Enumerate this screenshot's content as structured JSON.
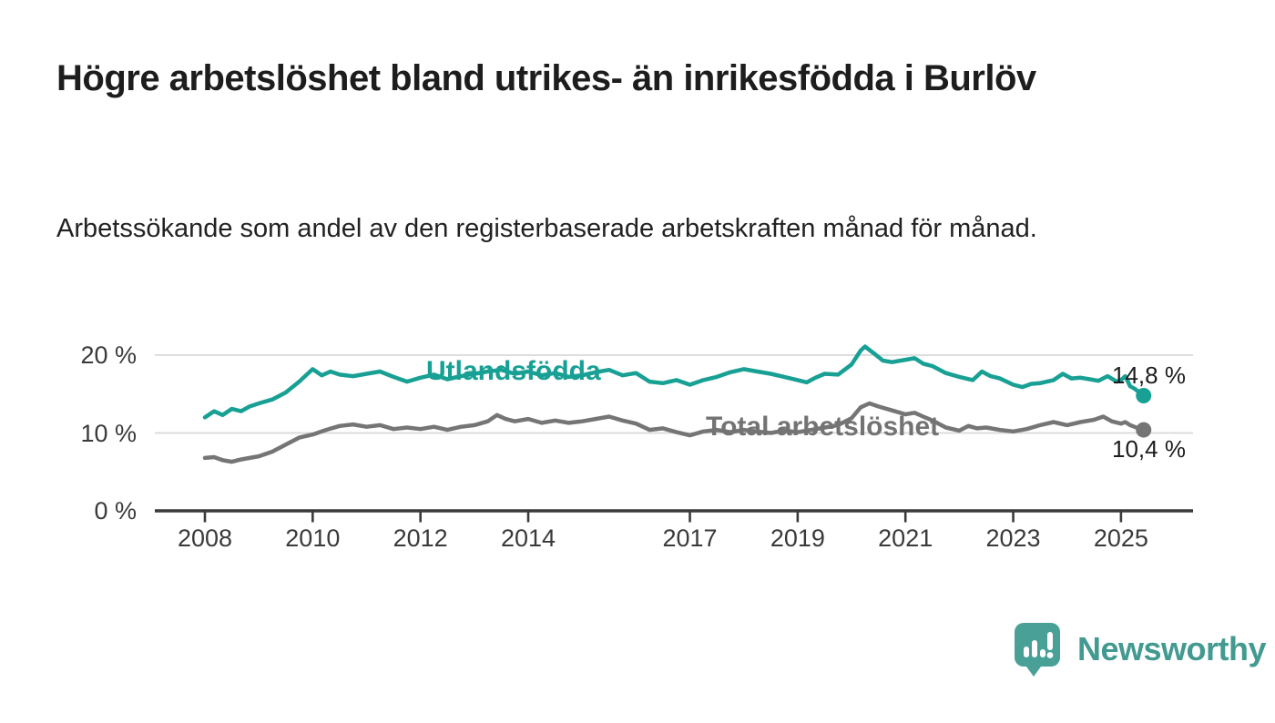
{
  "header": {
    "title": "Högre arbetslöshet bland utrikes- än inrikesfödda i Burlöv",
    "subtitle": "Arbetssökande som andel av den registerbaserade arbetskraften månad för månad."
  },
  "branding": {
    "name": "Newsworthy",
    "logo_color": "#48a096"
  },
  "colors": {
    "foreign_born_line": "#18a094",
    "total_line": "#757575",
    "total_label": "#737373",
    "grid": "#d9d9d9",
    "axis": "#3a3a3a",
    "value_label_text": "#1d1d1d"
  },
  "chart_data": {
    "type": "line",
    "title": "Högre arbetslöshet bland utrikes- än inrikesfödda i Burlöv",
    "subtitle": "Arbetssökande som andel av den registerbaserade arbetskraften månad för månad.",
    "x_unit": "år (månadsdata)",
    "y_unit": "procent av registerbaserad arbetskraft",
    "x_axis": {
      "range": [
        2007.1,
        2026.3
      ],
      "ticks": [
        2008,
        2010,
        2012,
        2014,
        2017,
        2019,
        2021,
        2023,
        2025
      ],
      "tick_labels": [
        "2008",
        "2010",
        "2012",
        "2014",
        "2017",
        "2019",
        "2021",
        "2023",
        "2025"
      ]
    },
    "y_axis": {
      "range": [
        0,
        22.5
      ],
      "ticks": [
        0,
        10,
        20
      ],
      "tick_labels": [
        "0 %",
        "10 %",
        "20 %"
      ],
      "grid": true
    },
    "legend_position": "inline-labels-on-lines",
    "series": [
      {
        "name": "Utlandsfödda",
        "color": "#18a094",
        "end_label": "14,8 %",
        "last_value": 14.8,
        "points": [
          [
            2008.0,
            12.0
          ],
          [
            2008.17,
            12.8
          ],
          [
            2008.33,
            12.3
          ],
          [
            2008.5,
            13.1
          ],
          [
            2008.67,
            12.8
          ],
          [
            2008.83,
            13.4
          ],
          [
            2009.0,
            13.8
          ],
          [
            2009.25,
            14.3
          ],
          [
            2009.5,
            15.2
          ],
          [
            2009.75,
            16.6
          ],
          [
            2010.0,
            18.2
          ],
          [
            2010.17,
            17.4
          ],
          [
            2010.33,
            17.9
          ],
          [
            2010.5,
            17.5
          ],
          [
            2010.75,
            17.3
          ],
          [
            2011.0,
            17.6
          ],
          [
            2011.25,
            17.9
          ],
          [
            2011.5,
            17.2
          ],
          [
            2011.75,
            16.6
          ],
          [
            2012.0,
            17.1
          ],
          [
            2012.25,
            17.5
          ],
          [
            2012.5,
            16.9
          ],
          [
            2012.75,
            17.3
          ],
          [
            2013.0,
            17.6
          ],
          [
            2013.25,
            17.9
          ],
          [
            2013.5,
            18.1
          ],
          [
            2013.75,
            17.6
          ],
          [
            2014.0,
            17.9
          ],
          [
            2014.25,
            17.4
          ],
          [
            2014.5,
            17.7
          ],
          [
            2014.75,
            17.2
          ],
          [
            2015.0,
            17.4
          ],
          [
            2015.25,
            17.8
          ],
          [
            2015.5,
            18.1
          ],
          [
            2015.75,
            17.4
          ],
          [
            2016.0,
            17.7
          ],
          [
            2016.25,
            16.6
          ],
          [
            2016.5,
            16.4
          ],
          [
            2016.75,
            16.8
          ],
          [
            2017.0,
            16.2
          ],
          [
            2017.25,
            16.8
          ],
          [
            2017.5,
            17.2
          ],
          [
            2017.75,
            17.8
          ],
          [
            2018.0,
            18.2
          ],
          [
            2018.25,
            17.9
          ],
          [
            2018.5,
            17.6
          ],
          [
            2018.75,
            17.2
          ],
          [
            2019.0,
            16.8
          ],
          [
            2019.17,
            16.5
          ],
          [
            2019.33,
            17.1
          ],
          [
            2019.5,
            17.6
          ],
          [
            2019.75,
            17.5
          ],
          [
            2020.0,
            18.8
          ],
          [
            2020.17,
            20.6
          ],
          [
            2020.25,
            21.1
          ],
          [
            2020.42,
            20.2
          ],
          [
            2020.58,
            19.3
          ],
          [
            2020.75,
            19.1
          ],
          [
            2021.0,
            19.4
          ],
          [
            2021.17,
            19.6
          ],
          [
            2021.33,
            18.9
          ],
          [
            2021.5,
            18.6
          ],
          [
            2021.75,
            17.7
          ],
          [
            2022.0,
            17.2
          ],
          [
            2022.25,
            16.8
          ],
          [
            2022.42,
            17.9
          ],
          [
            2022.58,
            17.3
          ],
          [
            2022.75,
            17.0
          ],
          [
            2023.0,
            16.2
          ],
          [
            2023.17,
            15.9
          ],
          [
            2023.33,
            16.3
          ],
          [
            2023.5,
            16.4
          ],
          [
            2023.75,
            16.8
          ],
          [
            2023.92,
            17.6
          ],
          [
            2024.08,
            17.0
          ],
          [
            2024.25,
            17.1
          ],
          [
            2024.42,
            16.9
          ],
          [
            2024.58,
            16.7
          ],
          [
            2024.75,
            17.3
          ],
          [
            2024.92,
            16.6
          ],
          [
            2025.0,
            16.8
          ],
          [
            2025.08,
            17.3
          ],
          [
            2025.17,
            16.0
          ],
          [
            2025.25,
            15.7
          ],
          [
            2025.42,
            14.8
          ]
        ]
      },
      {
        "name": "Total arbetslöshet",
        "color": "#757575",
        "end_label": "10,4 %",
        "last_value": 10.4,
        "points": [
          [
            2008.0,
            6.8
          ],
          [
            2008.17,
            6.9
          ],
          [
            2008.33,
            6.5
          ],
          [
            2008.5,
            6.3
          ],
          [
            2008.67,
            6.6
          ],
          [
            2008.83,
            6.8
          ],
          [
            2009.0,
            7.0
          ],
          [
            2009.25,
            7.6
          ],
          [
            2009.5,
            8.5
          ],
          [
            2009.75,
            9.4
          ],
          [
            2010.0,
            9.8
          ],
          [
            2010.25,
            10.4
          ],
          [
            2010.5,
            10.9
          ],
          [
            2010.75,
            11.1
          ],
          [
            2011.0,
            10.8
          ],
          [
            2011.25,
            11.0
          ],
          [
            2011.5,
            10.5
          ],
          [
            2011.75,
            10.7
          ],
          [
            2012.0,
            10.5
          ],
          [
            2012.25,
            10.8
          ],
          [
            2012.5,
            10.4
          ],
          [
            2012.75,
            10.8
          ],
          [
            2013.0,
            11.0
          ],
          [
            2013.25,
            11.5
          ],
          [
            2013.42,
            12.3
          ],
          [
            2013.58,
            11.8
          ],
          [
            2013.75,
            11.5
          ],
          [
            2014.0,
            11.8
          ],
          [
            2014.25,
            11.3
          ],
          [
            2014.5,
            11.6
          ],
          [
            2014.75,
            11.3
          ],
          [
            2015.0,
            11.5
          ],
          [
            2015.25,
            11.8
          ],
          [
            2015.5,
            12.1
          ],
          [
            2015.75,
            11.6
          ],
          [
            2016.0,
            11.2
          ],
          [
            2016.25,
            10.4
          ],
          [
            2016.5,
            10.6
          ],
          [
            2016.75,
            10.1
          ],
          [
            2017.0,
            9.7
          ],
          [
            2017.25,
            10.2
          ],
          [
            2017.5,
            10.4
          ],
          [
            2017.75,
            10.1
          ],
          [
            2018.0,
            10.4
          ],
          [
            2018.25,
            10.2
          ],
          [
            2018.5,
            10.0
          ],
          [
            2018.75,
            10.3
          ],
          [
            2019.0,
            10.1
          ],
          [
            2019.25,
            10.4
          ],
          [
            2019.5,
            10.7
          ],
          [
            2019.75,
            11.0
          ],
          [
            2020.0,
            11.9
          ],
          [
            2020.17,
            13.3
          ],
          [
            2020.33,
            13.8
          ],
          [
            2020.5,
            13.4
          ],
          [
            2020.75,
            12.9
          ],
          [
            2021.0,
            12.4
          ],
          [
            2021.17,
            12.6
          ],
          [
            2021.33,
            12.1
          ],
          [
            2021.5,
            11.6
          ],
          [
            2021.75,
            10.7
          ],
          [
            2022.0,
            10.3
          ],
          [
            2022.17,
            10.9
          ],
          [
            2022.33,
            10.6
          ],
          [
            2022.5,
            10.7
          ],
          [
            2022.75,
            10.4
          ],
          [
            2023.0,
            10.2
          ],
          [
            2023.25,
            10.5
          ],
          [
            2023.5,
            11.0
          ],
          [
            2023.75,
            11.4
          ],
          [
            2024.0,
            11.0
          ],
          [
            2024.25,
            11.4
          ],
          [
            2024.5,
            11.7
          ],
          [
            2024.67,
            12.1
          ],
          [
            2024.83,
            11.5
          ],
          [
            2025.0,
            11.2
          ],
          [
            2025.08,
            11.4
          ],
          [
            2025.17,
            11.0
          ],
          [
            2025.25,
            10.8
          ],
          [
            2025.42,
            10.4
          ]
        ]
      }
    ]
  }
}
